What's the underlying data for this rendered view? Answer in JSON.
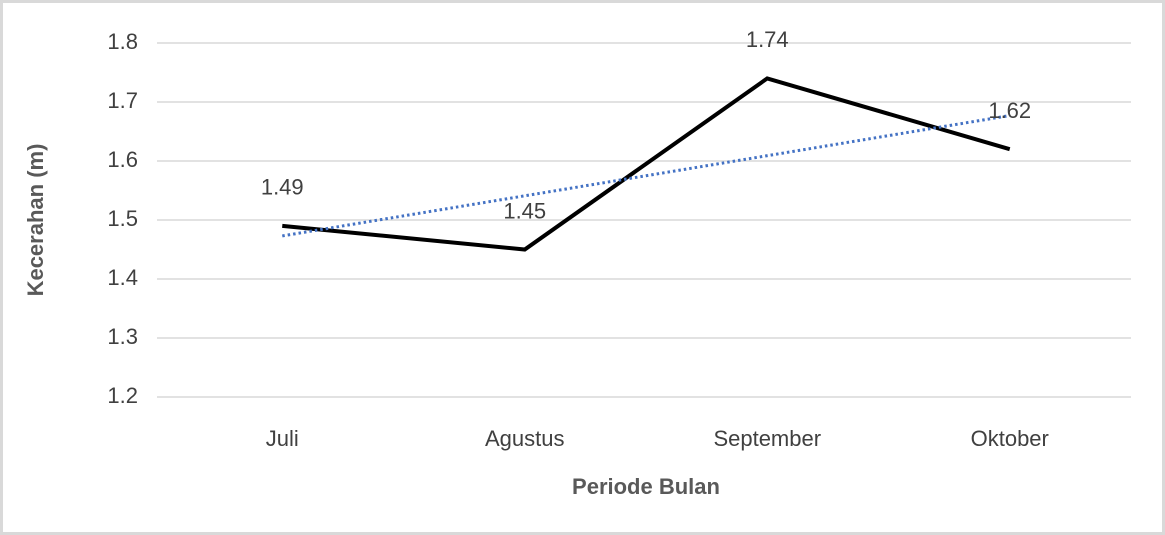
{
  "chart_data": {
    "type": "line",
    "x_label": "Periode Bulan",
    "y_label": "Kecerahan (m)",
    "categories": [
      "Juli",
      "Agustus",
      "September",
      "Oktober"
    ],
    "values": [
      1.49,
      1.45,
      1.74,
      1.62
    ],
    "color": "#000000",
    "trendline": {
      "type": "linear",
      "color": "#4472c4"
    },
    "ylim": [
      1.2,
      1.8
    ],
    "yticks": [
      1.2,
      1.3,
      1.4,
      1.5,
      1.6,
      1.7,
      1.8
    ],
    "grid": true
  }
}
